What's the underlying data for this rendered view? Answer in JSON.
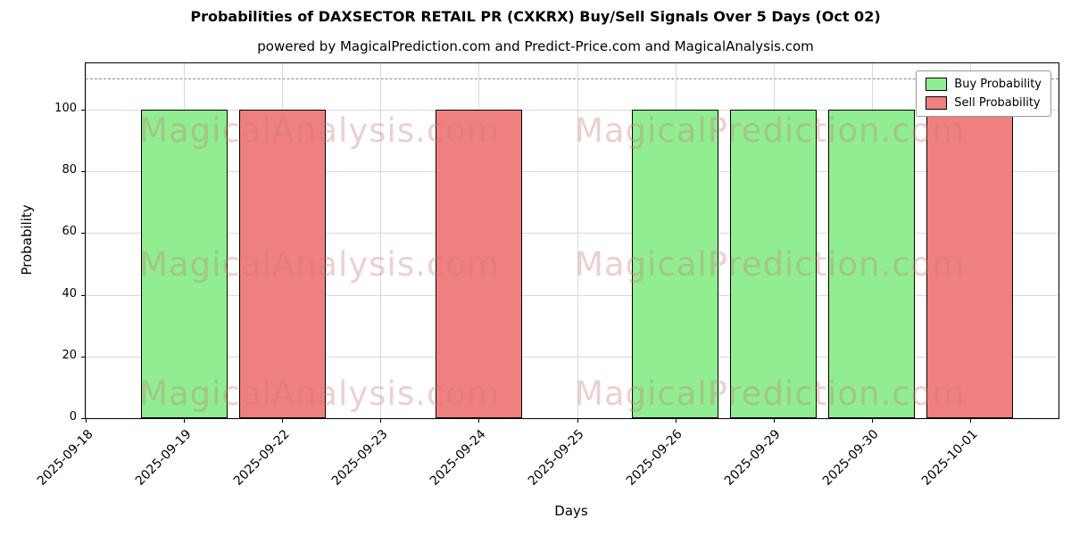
{
  "title": "Probabilities of DAXSECTOR RETAIL PR (CXKRX) Buy/Sell Signals Over 5 Days (Oct 02)",
  "subtitle": "powered by MagicalPrediction.com and Predict-Price.com and MagicalAnalysis.com",
  "watermarks": {
    "left": "MagicalAnalysis.com",
    "right": "MagicalPrediction.com"
  },
  "legend": [
    {
      "label": "Buy Probability",
      "color": "#90ee90"
    },
    {
      "label": "Sell Probability",
      "color": "#f08080"
    }
  ],
  "chart_data": {
    "type": "bar",
    "title": "Probabilities of DAXSECTOR RETAIL PR (CXKRX) Buy/Sell Signals Over 5 Days (Oct 02)",
    "xlabel": "Days",
    "ylabel": "Probability",
    "categories": [
      "2025-09-18",
      "2025-09-19",
      "2025-09-22",
      "2025-09-23",
      "2025-09-24",
      "2025-09-25",
      "2025-09-26",
      "2025-09-29",
      "2025-09-30",
      "2025-10-01"
    ],
    "series": [
      {
        "name": "Buy Probability",
        "color": "#90ee90",
        "values": [
          null,
          100,
          null,
          null,
          null,
          null,
          100,
          100,
          100,
          null
        ]
      },
      {
        "name": "Sell Probability",
        "color": "#f08080",
        "values": [
          null,
          null,
          100,
          null,
          100,
          null,
          null,
          null,
          null,
          100
        ]
      }
    ],
    "ylim": [
      0,
      115
    ],
    "yticks": [
      0,
      20,
      40,
      60,
      80,
      100
    ],
    "dashed_line_y": 110,
    "grid": true,
    "legend_position": "upper right",
    "bar_edge_color": "#000000"
  }
}
